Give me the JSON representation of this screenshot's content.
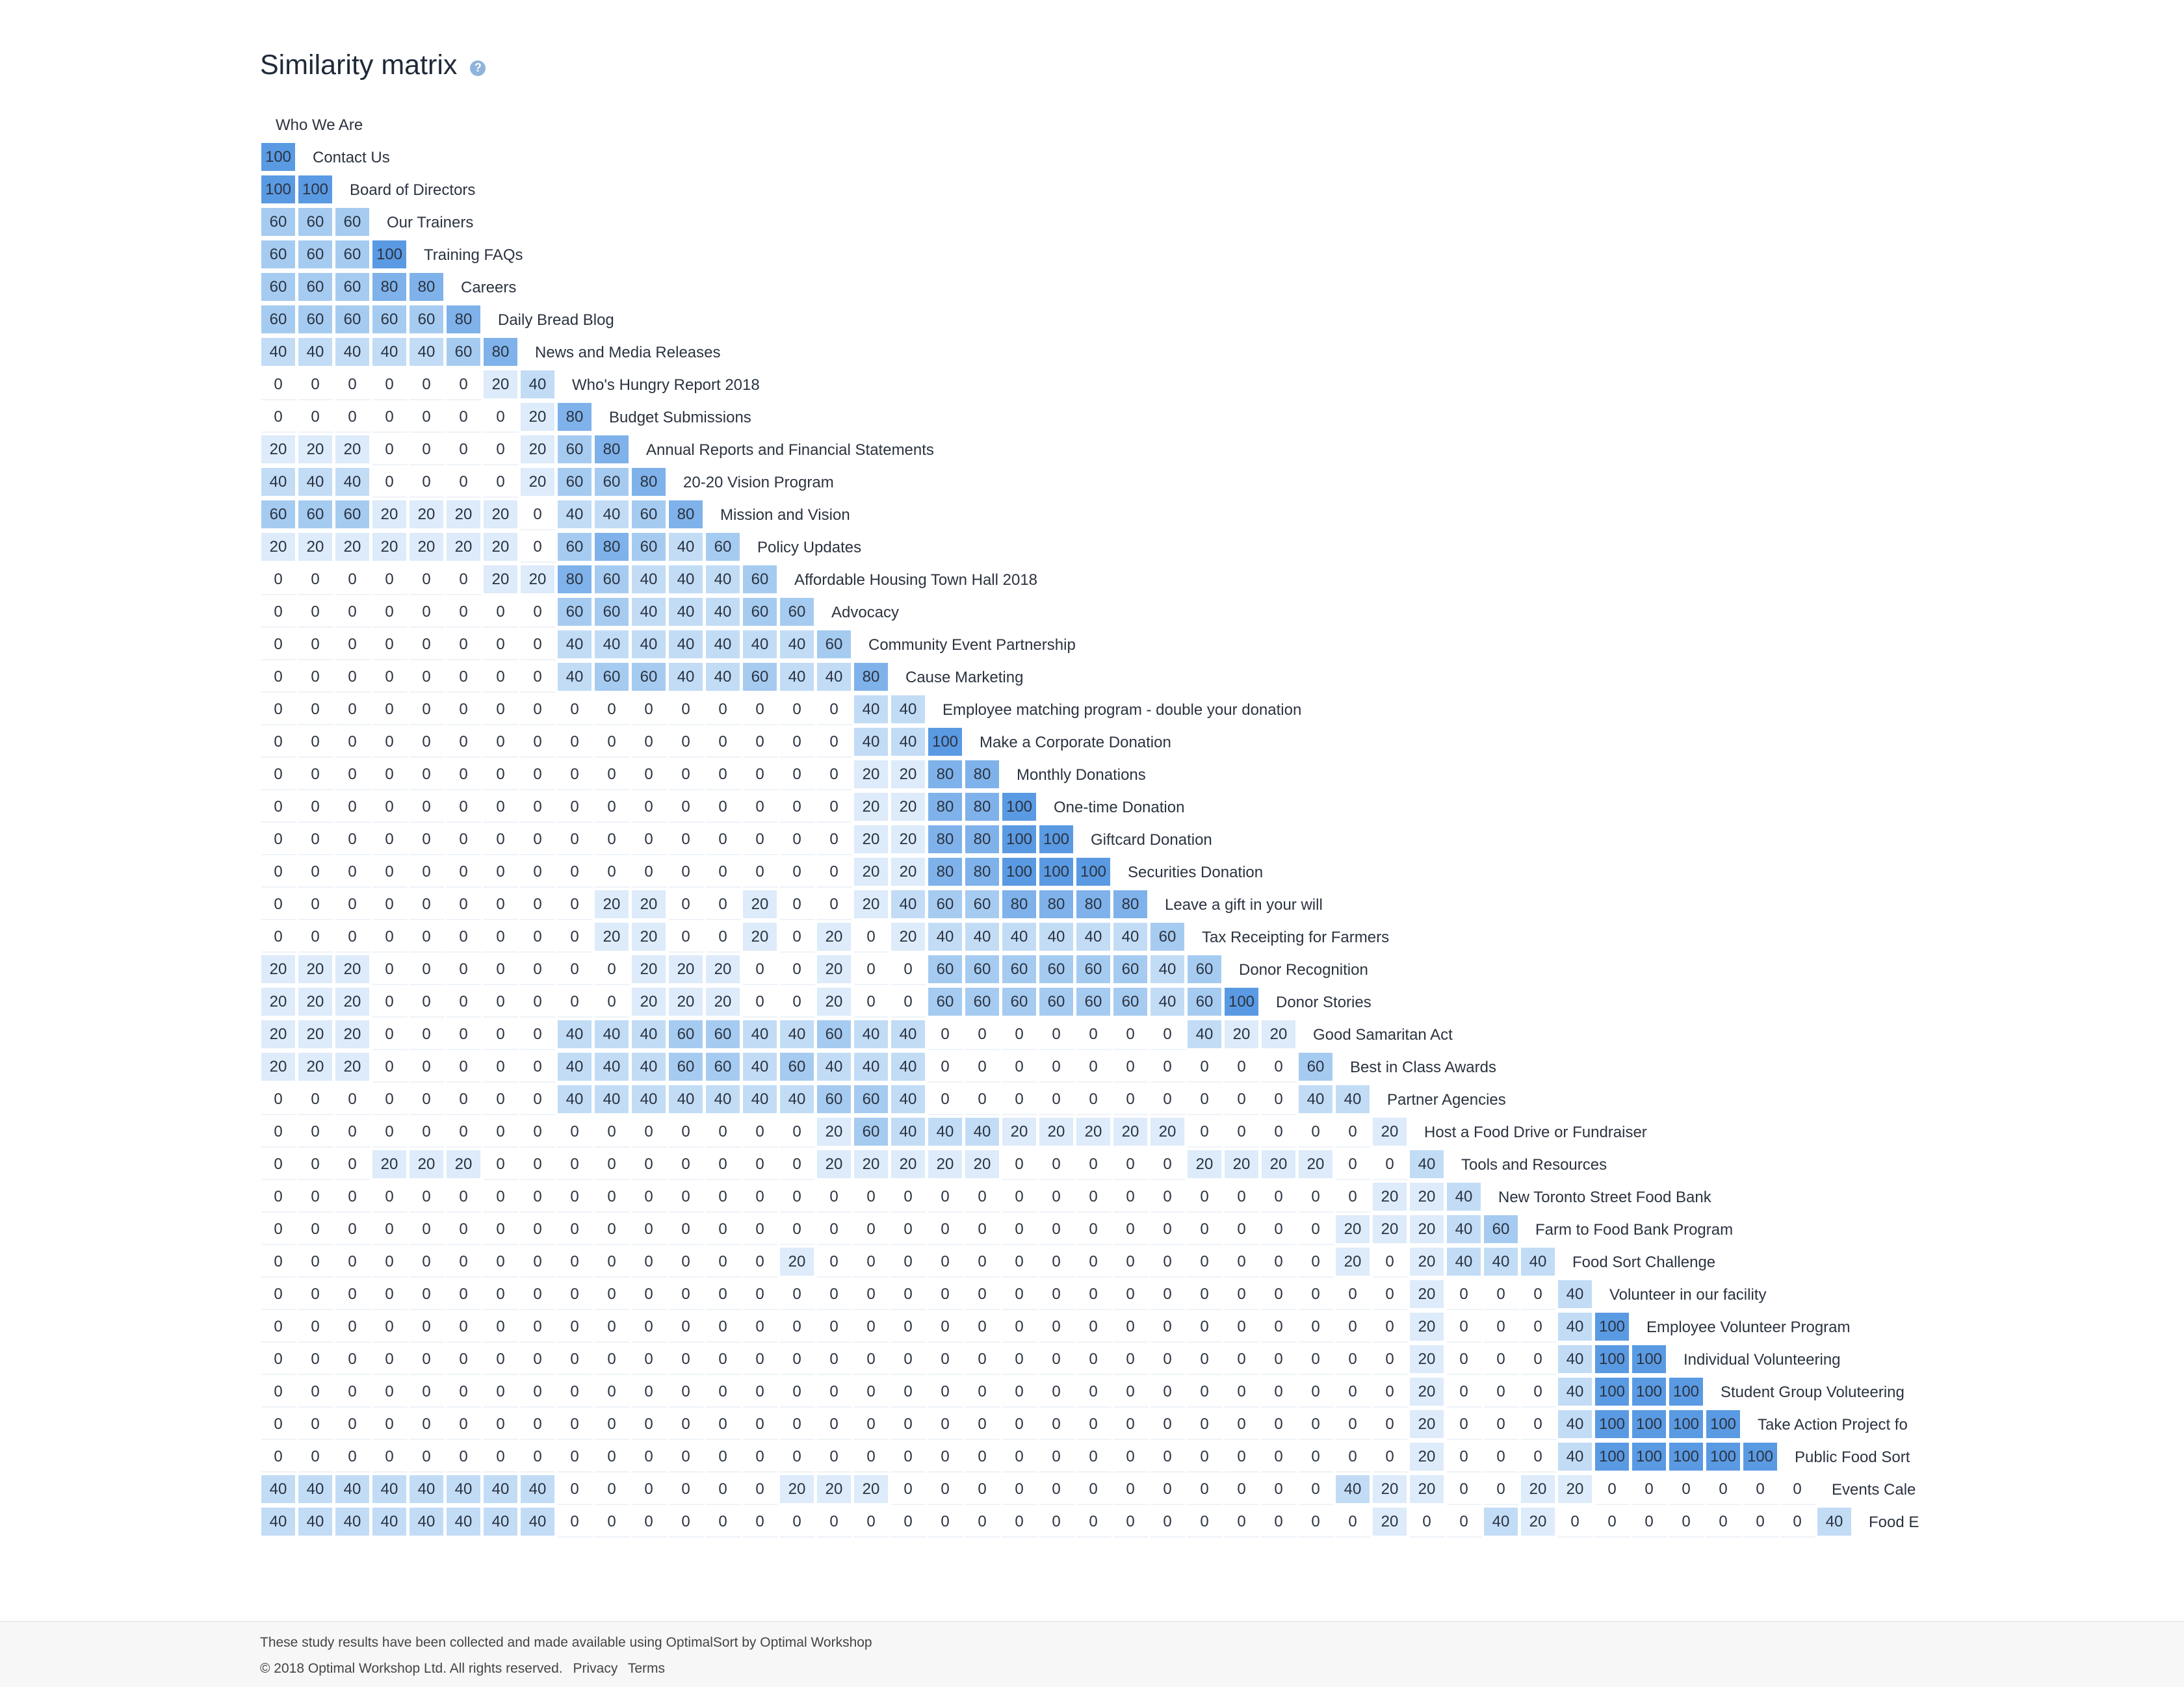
{
  "page": {
    "title": "Similarity matrix",
    "help_icon": "?"
  },
  "footer": {
    "study_note": "These study results have been collected and made available using OptimalSort by Optimal Workshop",
    "copyright": "© 2018 Optimal Workshop Ltd. All rights reserved.",
    "privacy_link": "Privacy",
    "terms_link": "Terms"
  },
  "colors": {
    "scale_0": "#ffffff",
    "scale_20": "#ddebfa",
    "scale_40": "#c2dcf6",
    "scale_60": "#a6cbf1",
    "scale_80": "#7fb2ea",
    "scale_100": "#5a9ae3"
  },
  "chart_data": {
    "type": "heatmap",
    "title": "Similarity matrix",
    "labels": [
      "Who We Are",
      "Contact Us",
      "Board of Directors",
      "Our Trainers",
      "Training FAQs",
      "Careers",
      "Daily Bread Blog",
      "News and Media Releases",
      "Who's Hungry Report 2018",
      "Budget Submissions",
      "Annual Reports and Financial Statements",
      "20-20 Vision Program",
      "Mission and Vision",
      "Policy Updates",
      "Affordable Housing Town Hall 2018",
      "Advocacy",
      "Community Event Partnership",
      "Cause Marketing",
      "Employee matching program - double your donation",
      "Make a Corporate Donation",
      "Monthly Donations",
      "One-time Donation",
      "Giftcard Donation",
      "Securities Donation",
      "Leave a gift in your will",
      "Tax Receipting for Farmers",
      "Donor Recognition",
      "Donor Stories",
      "Good Samaritan Act",
      "Best in Class Awards",
      "Partner Agencies",
      "Host a Food Drive or Fundraiser",
      "Tools and Resources",
      "New Toronto Street Food Bank",
      "Farm to Food Bank Program",
      "Food Sort Challenge",
      "Volunteer in our facility",
      "Employee Volunteer Program",
      "Individual Volunteering",
      "Student Group Voluteering",
      "Take Action Project fo",
      "Public Food Sort",
      "Events Cale",
      "Food E"
    ],
    "rows": [
      [],
      [
        100
      ],
      [
        100,
        100
      ],
      [
        60,
        60,
        60
      ],
      [
        60,
        60,
        60,
        100
      ],
      [
        60,
        60,
        60,
        80,
        80
      ],
      [
        60,
        60,
        60,
        60,
        60,
        80
      ],
      [
        40,
        40,
        40,
        40,
        40,
        60,
        80
      ],
      [
        0,
        0,
        0,
        0,
        0,
        0,
        20,
        40
      ],
      [
        0,
        0,
        0,
        0,
        0,
        0,
        0,
        20,
        80
      ],
      [
        20,
        20,
        20,
        0,
        0,
        0,
        0,
        20,
        60,
        80
      ],
      [
        40,
        40,
        40,
        0,
        0,
        0,
        0,
        20,
        60,
        60,
        80
      ],
      [
        60,
        60,
        60,
        20,
        20,
        20,
        20,
        0,
        40,
        40,
        60,
        80
      ],
      [
        20,
        20,
        20,
        20,
        20,
        20,
        20,
        0,
        60,
        80,
        60,
        40,
        60
      ],
      [
        0,
        0,
        0,
        0,
        0,
        0,
        20,
        20,
        80,
        60,
        40,
        40,
        40,
        60
      ],
      [
        0,
        0,
        0,
        0,
        0,
        0,
        0,
        0,
        60,
        60,
        40,
        40,
        40,
        60,
        60
      ],
      [
        0,
        0,
        0,
        0,
        0,
        0,
        0,
        0,
        40,
        40,
        40,
        40,
        40,
        40,
        40,
        60
      ],
      [
        0,
        0,
        0,
        0,
        0,
        0,
        0,
        0,
        40,
        60,
        60,
        40,
        40,
        60,
        40,
        40,
        80
      ],
      [
        0,
        0,
        0,
        0,
        0,
        0,
        0,
        0,
        0,
        0,
        0,
        0,
        0,
        0,
        0,
        0,
        40,
        40
      ],
      [
        0,
        0,
        0,
        0,
        0,
        0,
        0,
        0,
        0,
        0,
        0,
        0,
        0,
        0,
        0,
        0,
        40,
        40,
        100
      ],
      [
        0,
        0,
        0,
        0,
        0,
        0,
        0,
        0,
        0,
        0,
        0,
        0,
        0,
        0,
        0,
        0,
        20,
        20,
        80,
        80
      ],
      [
        0,
        0,
        0,
        0,
        0,
        0,
        0,
        0,
        0,
        0,
        0,
        0,
        0,
        0,
        0,
        0,
        20,
        20,
        80,
        80,
        100
      ],
      [
        0,
        0,
        0,
        0,
        0,
        0,
        0,
        0,
        0,
        0,
        0,
        0,
        0,
        0,
        0,
        0,
        20,
        20,
        80,
        80,
        100,
        100
      ],
      [
        0,
        0,
        0,
        0,
        0,
        0,
        0,
        0,
        0,
        0,
        0,
        0,
        0,
        0,
        0,
        0,
        20,
        20,
        80,
        80,
        100,
        100,
        100
      ],
      [
        0,
        0,
        0,
        0,
        0,
        0,
        0,
        0,
        0,
        20,
        20,
        0,
        0,
        20,
        0,
        0,
        20,
        40,
        60,
        60,
        80,
        80,
        80,
        80
      ],
      [
        0,
        0,
        0,
        0,
        0,
        0,
        0,
        0,
        0,
        20,
        20,
        0,
        0,
        20,
        0,
        20,
        0,
        20,
        40,
        40,
        40,
        40,
        40,
        40,
        60
      ],
      [
        20,
        20,
        20,
        0,
        0,
        0,
        0,
        0,
        0,
        0,
        20,
        20,
        20,
        0,
        0,
        20,
        0,
        0,
        60,
        60,
        60,
        60,
        60,
        60,
        40,
        60
      ],
      [
        20,
        20,
        20,
        0,
        0,
        0,
        0,
        0,
        0,
        0,
        20,
        20,
        20,
        0,
        0,
        20,
        0,
        0,
        60,
        60,
        60,
        60,
        60,
        60,
        40,
        60,
        100
      ],
      [
        20,
        20,
        20,
        0,
        0,
        0,
        0,
        0,
        40,
        40,
        40,
        60,
        60,
        40,
        40,
        60,
        40,
        40,
        0,
        0,
        0,
        0,
        0,
        0,
        0,
        40,
        20,
        20
      ],
      [
        20,
        20,
        20,
        0,
        0,
        0,
        0,
        0,
        40,
        40,
        40,
        60,
        60,
        40,
        60,
        40,
        40,
        40,
        0,
        0,
        0,
        0,
        0,
        0,
        0,
        0,
        0,
        0,
        60
      ],
      [
        0,
        0,
        0,
        0,
        0,
        0,
        0,
        0,
        40,
        40,
        40,
        40,
        40,
        40,
        40,
        60,
        60,
        40,
        0,
        0,
        0,
        0,
        0,
        0,
        0,
        0,
        0,
        0,
        40,
        40
      ],
      [
        0,
        0,
        0,
        0,
        0,
        0,
        0,
        0,
        0,
        0,
        0,
        0,
        0,
        0,
        0,
        20,
        60,
        40,
        40,
        40,
        20,
        20,
        20,
        20,
        20,
        0,
        0,
        0,
        0,
        0,
        20
      ],
      [
        0,
        0,
        0,
        20,
        20,
        20,
        0,
        0,
        0,
        0,
        0,
        0,
        0,
        0,
        0,
        20,
        20,
        20,
        20,
        20,
        0,
        0,
        0,
        0,
        0,
        20,
        20,
        20,
        20,
        0,
        0,
        40
      ],
      [
        0,
        0,
        0,
        0,
        0,
        0,
        0,
        0,
        0,
        0,
        0,
        0,
        0,
        0,
        0,
        0,
        0,
        0,
        0,
        0,
        0,
        0,
        0,
        0,
        0,
        0,
        0,
        0,
        0,
        0,
        20,
        20,
        40
      ],
      [
        0,
        0,
        0,
        0,
        0,
        0,
        0,
        0,
        0,
        0,
        0,
        0,
        0,
        0,
        0,
        0,
        0,
        0,
        0,
        0,
        0,
        0,
        0,
        0,
        0,
        0,
        0,
        0,
        0,
        20,
        20,
        20,
        40,
        60
      ],
      [
        0,
        0,
        0,
        0,
        0,
        0,
        0,
        0,
        0,
        0,
        0,
        0,
        0,
        0,
        20,
        0,
        0,
        0,
        0,
        0,
        0,
        0,
        0,
        0,
        0,
        0,
        0,
        0,
        0,
        20,
        0,
        20,
        40,
        40,
        40
      ],
      [
        0,
        0,
        0,
        0,
        0,
        0,
        0,
        0,
        0,
        0,
        0,
        0,
        0,
        0,
        0,
        0,
        0,
        0,
        0,
        0,
        0,
        0,
        0,
        0,
        0,
        0,
        0,
        0,
        0,
        0,
        0,
        20,
        0,
        0,
        0,
        40
      ],
      [
        0,
        0,
        0,
        0,
        0,
        0,
        0,
        0,
        0,
        0,
        0,
        0,
        0,
        0,
        0,
        0,
        0,
        0,
        0,
        0,
        0,
        0,
        0,
        0,
        0,
        0,
        0,
        0,
        0,
        0,
        0,
        20,
        0,
        0,
        0,
        40,
        100
      ],
      [
        0,
        0,
        0,
        0,
        0,
        0,
        0,
        0,
        0,
        0,
        0,
        0,
        0,
        0,
        0,
        0,
        0,
        0,
        0,
        0,
        0,
        0,
        0,
        0,
        0,
        0,
        0,
        0,
        0,
        0,
        0,
        20,
        0,
        0,
        0,
        40,
        100,
        100
      ],
      [
        0,
        0,
        0,
        0,
        0,
        0,
        0,
        0,
        0,
        0,
        0,
        0,
        0,
        0,
        0,
        0,
        0,
        0,
        0,
        0,
        0,
        0,
        0,
        0,
        0,
        0,
        0,
        0,
        0,
        0,
        0,
        20,
        0,
        0,
        0,
        40,
        100,
        100,
        100
      ],
      [
        0,
        0,
        0,
        0,
        0,
        0,
        0,
        0,
        0,
        0,
        0,
        0,
        0,
        0,
        0,
        0,
        0,
        0,
        0,
        0,
        0,
        0,
        0,
        0,
        0,
        0,
        0,
        0,
        0,
        0,
        0,
        20,
        0,
        0,
        0,
        40,
        100,
        100,
        100,
        100
      ],
      [
        0,
        0,
        0,
        0,
        0,
        0,
        0,
        0,
        0,
        0,
        0,
        0,
        0,
        0,
        0,
        0,
        0,
        0,
        0,
        0,
        0,
        0,
        0,
        0,
        0,
        0,
        0,
        0,
        0,
        0,
        0,
        20,
        0,
        0,
        0,
        40,
        100,
        100,
        100,
        100,
        100
      ],
      [
        40,
        40,
        40,
        40,
        40,
        40,
        40,
        40,
        0,
        0,
        0,
        0,
        0,
        0,
        20,
        20,
        20,
        0,
        0,
        0,
        0,
        0,
        0,
        0,
        0,
        0,
        0,
        0,
        0,
        40,
        20,
        20,
        0,
        0,
        20,
        20,
        0,
        0,
        0,
        0,
        0,
        0
      ],
      [
        40,
        40,
        40,
        40,
        40,
        40,
        40,
        40,
        0,
        0,
        0,
        0,
        0,
        0,
        0,
        0,
        0,
        0,
        0,
        0,
        0,
        0,
        0,
        0,
        0,
        0,
        0,
        0,
        0,
        0,
        20,
        0,
        0,
        40,
        20,
        0,
        0,
        0,
        0,
        0,
        0,
        0,
        40
      ]
    ]
  }
}
